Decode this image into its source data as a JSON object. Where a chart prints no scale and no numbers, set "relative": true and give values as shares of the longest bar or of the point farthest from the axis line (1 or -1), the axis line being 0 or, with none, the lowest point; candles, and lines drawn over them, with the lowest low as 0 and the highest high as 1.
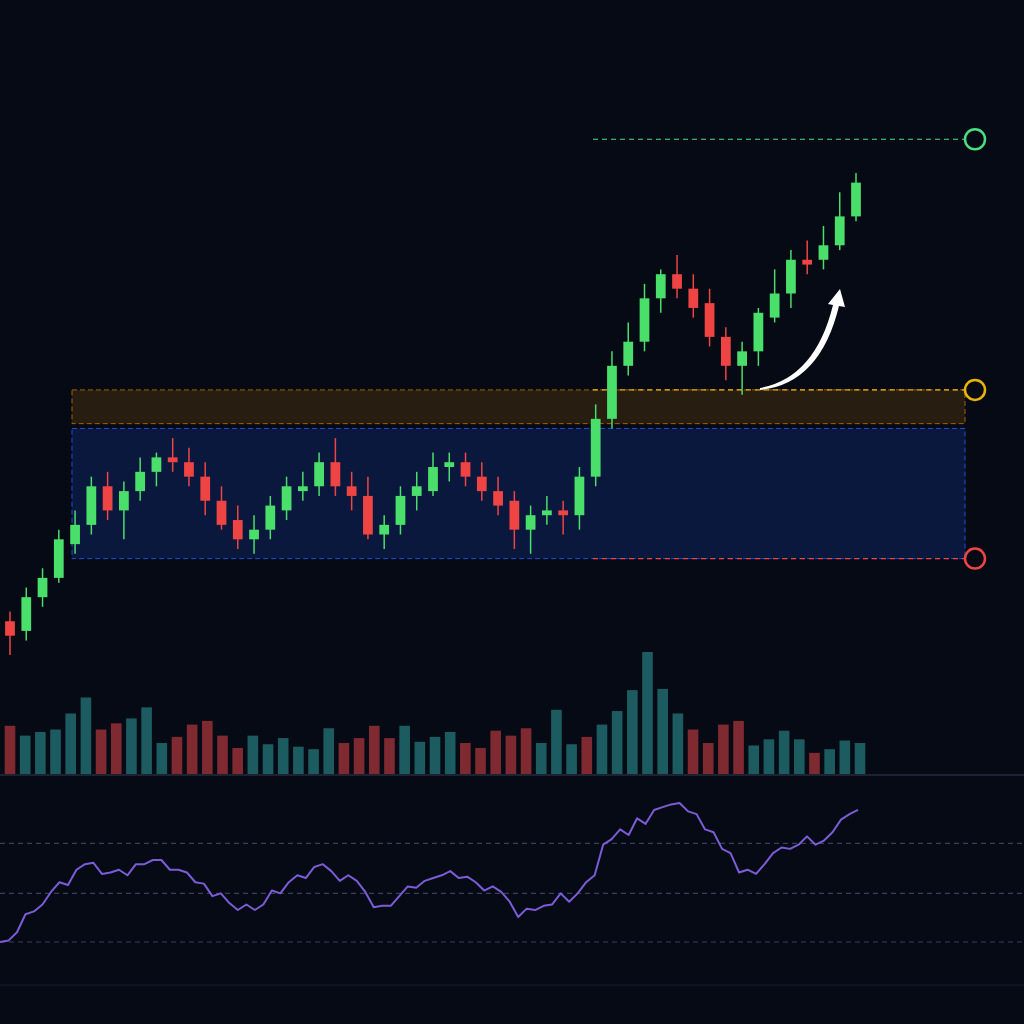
{
  "chart_data": [
    {
      "type": "candlestick",
      "relative": true,
      "categories": [
        null,
        null,
        null,
        null,
        null,
        null,
        null,
        null,
        null,
        null,
        null,
        null,
        null,
        null,
        null,
        null,
        null,
        null,
        null,
        null,
        null,
        null,
        null,
        null,
        null,
        null,
        null,
        null,
        null,
        null,
        null,
        null,
        null,
        null,
        null,
        null,
        null,
        null,
        null,
        null,
        null,
        null,
        null,
        null,
        null,
        null,
        null,
        null,
        null,
        null,
        null,
        null,
        null
      ],
      "ohlc": [
        [
          0.07,
          0.09,
          0,
          0.04
        ],
        [
          0.05,
          0.14,
          0.03,
          0.12
        ],
        [
          0.12,
          0.18,
          0.1,
          0.16
        ],
        [
          0.16,
          0.26,
          0.15,
          0.24
        ],
        [
          0.23,
          0.3,
          0.21,
          0.27
        ],
        [
          0.27,
          0.37,
          0.25,
          0.35
        ],
        [
          0.35,
          0.38,
          0.28,
          0.3
        ],
        [
          0.3,
          0.36,
          0.24,
          0.34
        ],
        [
          0.34,
          0.41,
          0.32,
          0.38
        ],
        [
          0.38,
          0.42,
          0.35,
          0.41
        ],
        [
          0.41,
          0.45,
          0.38,
          0.4
        ],
        [
          0.4,
          0.43,
          0.35,
          0.37
        ],
        [
          0.37,
          0.4,
          0.29,
          0.32
        ],
        [
          0.32,
          0.35,
          0.26,
          0.27
        ],
        [
          0.28,
          0.31,
          0.22,
          0.24
        ],
        [
          0.24,
          0.29,
          0.21,
          0.26
        ],
        [
          0.26,
          0.33,
          0.24,
          0.31
        ],
        [
          0.3,
          0.37,
          0.28,
          0.35
        ],
        [
          0.34,
          0.38,
          0.32,
          0.35
        ],
        [
          0.35,
          0.42,
          0.33,
          0.4
        ],
        [
          0.4,
          0.45,
          0.33,
          0.35
        ],
        [
          0.35,
          0.38,
          0.3,
          0.33
        ],
        [
          0.33,
          0.37,
          0.24,
          0.25
        ],
        [
          0.25,
          0.29,
          0.22,
          0.27
        ],
        [
          0.27,
          0.35,
          0.25,
          0.33
        ],
        [
          0.33,
          0.38,
          0.3,
          0.35
        ],
        [
          0.34,
          0.42,
          0.33,
          0.39
        ],
        [
          0.39,
          0.42,
          0.36,
          0.4
        ],
        [
          0.4,
          0.42,
          0.35,
          0.37
        ],
        [
          0.37,
          0.4,
          0.32,
          0.34
        ],
        [
          0.34,
          0.37,
          0.29,
          0.31
        ],
        [
          0.32,
          0.34,
          0.22,
          0.26
        ],
        [
          0.26,
          0.31,
          0.21,
          0.29
        ],
        [
          0.29,
          0.33,
          0.27,
          0.3
        ],
        [
          0.3,
          0.32,
          0.25,
          0.29
        ],
        [
          0.29,
          0.39,
          0.26,
          0.37
        ],
        [
          0.37,
          0.52,
          0.35,
          0.49
        ],
        [
          0.49,
          0.63,
          0.47,
          0.6
        ],
        [
          0.6,
          0.69,
          0.58,
          0.65
        ],
        [
          0.65,
          0.77,
          0.63,
          0.74
        ],
        [
          0.74,
          0.8,
          0.71,
          0.79
        ],
        [
          0.79,
          0.83,
          0.74,
          0.76
        ],
        [
          0.76,
          0.79,
          0.7,
          0.72
        ],
        [
          0.73,
          0.76,
          0.64,
          0.66
        ],
        [
          0.66,
          0.68,
          0.57,
          0.6
        ],
        [
          0.6,
          0.65,
          0.54,
          0.63
        ],
        [
          0.63,
          0.72,
          0.6,
          0.71
        ],
        [
          0.7,
          0.8,
          0.69,
          0.75
        ],
        [
          0.75,
          0.84,
          0.72,
          0.82
        ],
        [
          0.82,
          0.86,
          0.79,
          0.81
        ],
        [
          0.82,
          0.89,
          0.8,
          0.85
        ],
        [
          0.85,
          0.96,
          0.84,
          0.91
        ],
        [
          0.91,
          1,
          0.9,
          0.98
        ]
      ],
      "colors": [
        "#ef4444",
        "#4ade6a",
        "#4ade6a",
        "#4ade6a",
        "#4ade6a",
        "#4ade6a",
        "#ef4444",
        "#4ade6a",
        "#4ade6a",
        "#4ade6a",
        "#ef4444",
        "#ef4444",
        "#ef4444",
        "#ef4444",
        "#ef4444",
        "#4ade6a",
        "#4ade6a",
        "#4ade6a",
        "#4ade6a",
        "#4ade6a",
        "#ef4444",
        "#ef4444",
        "#ef4444",
        "#4ade6a",
        "#4ade6a",
        "#4ade6a",
        "#4ade6a",
        "#4ade6a",
        "#ef4444",
        "#ef4444",
        "#ef4444",
        "#ef4444",
        "#4ade6a",
        "#4ade6a",
        "#ef4444",
        "#4ade6a",
        "#4ade6a",
        "#4ade6a",
        "#4ade6a",
        "#4ade6a",
        "#4ade6a",
        "#ef4444",
        "#ef4444",
        "#ef4444",
        "#ef4444",
        "#4ade6a",
        "#4ade6a",
        "#4ade6a",
        "#4ade6a",
        "#ef4444",
        "#4ade6a",
        "#4ade6a",
        "#4ade6a"
      ],
      "ref_lines": [
        {
          "axis": "y",
          "value": 1.07,
          "color": "#4ade80",
          "line_style": "dashed"
        },
        {
          "axis": "y",
          "value": 0.55,
          "color": "#eab308",
          "line_style": "dashed"
        },
        {
          "axis": "y",
          "value": 0.2,
          "color": "#ef4444",
          "line_style": "dashed"
        }
      ],
      "bands": [
        {
          "axis": "y",
          "from": 0.2,
          "to": 0.47,
          "color": "#1d4ed8"
        },
        {
          "axis": "y",
          "from": 0.48,
          "to": 0.55,
          "color": "#a16207"
        }
      ]
    },
    {
      "type": "bar",
      "relative": true,
      "categories": [
        null,
        null,
        null,
        null,
        null,
        null,
        null,
        null,
        null,
        null,
        null,
        null,
        null,
        null,
        null,
        null,
        null,
        null,
        null,
        null,
        null,
        null,
        null,
        null,
        null,
        null,
        null,
        null,
        null,
        null,
        null,
        null,
        null,
        null,
        null,
        null,
        null,
        null,
        null,
        null,
        null,
        null,
        null,
        null,
        null,
        null,
        null,
        null,
        null,
        null,
        null,
        null,
        null,
        null,
        null,
        null,
        null
      ],
      "values": [
        0.4,
        0.32,
        0.35,
        0.37,
        0.5,
        0.63,
        0.37,
        0.42,
        0.46,
        0.55,
        0.26,
        0.31,
        0.41,
        0.44,
        0.32,
        0.22,
        0.32,
        0.25,
        0.3,
        0.23,
        0.21,
        0.38,
        0.26,
        0.3,
        0.4,
        0.3,
        0.4,
        0.27,
        0.31,
        0.35,
        0.26,
        0.22,
        0.36,
        0.32,
        0.38,
        0.26,
        0.53,
        0.25,
        0.31,
        0.41,
        0.52,
        0.69,
        1,
        0.7,
        0.5,
        0.37,
        0.26,
        0.41,
        0.44,
        0.24,
        0.29,
        0.36,
        0.29,
        0.18,
        0.21,
        0.28,
        0.26
      ],
      "colors": [
        "#7f2a30",
        "#1c5c60",
        "#1c5c60",
        "#1c5c60",
        "#1c5c60",
        "#1c5c60",
        "#7f2a30",
        "#7f2a30",
        "#1c5c60",
        "#1c5c60",
        "#1c5c60",
        "#7f2a30",
        "#7f2a30",
        "#7f2a30",
        "#7f2a30",
        "#7f2a30",
        "#1c5c60",
        "#1c5c60",
        "#1c5c60",
        "#1c5c60",
        "#1c5c60",
        "#1c5c60",
        "#7f2a30",
        "#7f2a30",
        "#7f2a30",
        "#7f2a30",
        "#1c5c60",
        "#1c5c60",
        "#1c5c60",
        "#1c5c60",
        "#7f2a30",
        "#7f2a30",
        "#7f2a30",
        "#7f2a30",
        "#7f2a30",
        "#1c5c60",
        "#1c5c60",
        "#1c5c60",
        "#7f2a30",
        "#1c5c60",
        "#1c5c60",
        "#1c5c60",
        "#1c5c60",
        "#1c5c60",
        "#1c5c60",
        "#7f2a30",
        "#7f2a30",
        "#7f2a30",
        "#7f2a30",
        "#1c5c60",
        "#1c5c60",
        "#1c5c60",
        "#1c5c60",
        "#7f2a30",
        "#1c5c60",
        "#1c5c60",
        "#1c5c60"
      ]
    },
    {
      "type": "line",
      "relative": true,
      "categories": [
        null,
        null,
        null,
        null,
        null,
        null,
        null,
        null,
        null,
        null,
        null,
        null,
        null,
        null,
        null,
        null,
        null,
        null,
        null,
        null,
        null,
        null,
        null,
        null,
        null,
        null,
        null,
        null,
        null,
        null,
        null,
        null,
        null,
        null,
        null,
        null,
        null,
        null,
        null,
        null,
        null,
        null,
        null,
        null,
        null,
        null,
        null,
        null,
        null,
        null,
        null,
        null,
        null,
        null,
        null,
        null,
        null,
        null,
        null,
        null,
        null,
        null,
        null,
        null,
        null,
        null,
        null,
        null,
        null,
        null,
        null,
        null,
        null,
        null,
        null,
        null,
        null,
        null,
        null,
        null,
        null,
        null,
        null,
        null,
        null,
        null,
        null,
        null,
        null,
        null,
        null,
        null,
        null,
        null,
        null,
        null,
        null,
        null,
        null,
        null,
        null,
        null
      ],
      "series": [
        {
          "color": "#7c5cd6",
          "values": [
            0,
            0.01,
            0.07,
            0.2,
            0.22,
            0.27,
            0.36,
            0.43,
            0.41,
            0.52,
            0.56,
            0.57,
            0.49,
            0.5,
            0.52,
            0.48,
            0.56,
            0.56,
            0.59,
            0.59,
            0.52,
            0.52,
            0.5,
            0.43,
            0.42,
            0.33,
            0.35,
            0.28,
            0.23,
            0.27,
            0.23,
            0.27,
            0.37,
            0.35,
            0.43,
            0.48,
            0.46,
            0.54,
            0.56,
            0.51,
            0.44,
            0.48,
            0.44,
            0.36,
            0.25,
            0.26,
            0.26,
            0.33,
            0.4,
            0.39,
            0.44,
            0.46,
            0.48,
            0.51,
            0.46,
            0.47,
            0.43,
            0.37,
            0.4,
            0.36,
            0.29,
            0.18,
            0.24,
            0.23,
            0.26,
            0.27,
            0.35,
            0.29,
            0.35,
            0.43,
            0.48,
            0.7,
            0.74,
            0.81,
            0.77,
            0.89,
            0.85,
            0.95,
            0.97,
            0.99,
            1,
            0.94,
            0.92,
            0.81,
            0.79,
            0.67,
            0.64,
            0.5,
            0.52,
            0.49,
            0.56,
            0.64,
            0.68,
            0.67,
            0.7,
            0.76,
            0.7,
            0.73,
            0.79,
            0.88,
            0.92,
            0.95
          ]
        }
      ],
      "ref_lines": [
        {
          "axis": "y",
          "value": 0.71,
          "color": "#3a3f5c",
          "line_style": "dashed"
        },
        {
          "axis": "y",
          "value": 0.35,
          "color": "#3a3f5c",
          "line_style": "dashed"
        },
        {
          "axis": "y",
          "value": 0,
          "color": "#3a3f5c",
          "line_style": "dashed"
        }
      ]
    }
  ]
}
